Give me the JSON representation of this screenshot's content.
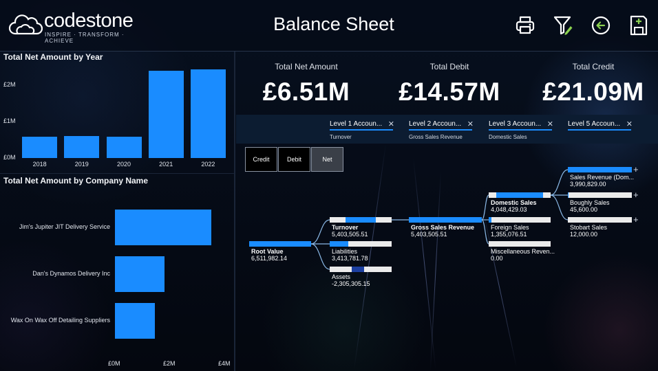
{
  "header": {
    "logo_name": "codestone",
    "logo_tagline": "INSPIRE · TRANSFORM · ACHIEVE",
    "title": "Balance Sheet",
    "icons": [
      "printer-icon",
      "filter-edit-icon",
      "back-arrow-icon",
      "save-add-icon"
    ]
  },
  "year_chart": {
    "title": "Total Net Amount by Year",
    "chart_data": {
      "type": "bar",
      "title": "Total Net Amount by Year",
      "categories": [
        "2018",
        "2019",
        "2020",
        "2021",
        "2022"
      ],
      "values": [
        0.58,
        0.6,
        0.58,
        2.4,
        2.45
      ],
      "y_ticks": [
        "£0M",
        "£1M",
        "£2M"
      ],
      "ylim": [
        0,
        2.5
      ],
      "color": "#1a8cff"
    }
  },
  "company_chart": {
    "title": "Total Net Amount by Company Name",
    "chart_data": {
      "type": "bar",
      "orientation": "horizontal",
      "title": "Total Net Amount by Company Name",
      "categories": [
        "Jim's Jupiter JIT Delivery Service",
        "Dan's Dynamos Delivery Inc",
        "Wax On Wax Off Detailing Suppliers"
      ],
      "values": [
        3.5,
        1.8,
        1.45
      ],
      "x_ticks": [
        "£0M",
        "£2M",
        "£4M"
      ],
      "xlim": [
        0,
        4
      ],
      "color": "#1a8cff"
    }
  },
  "kpis": [
    {
      "label": "Total Net Amount",
      "value": "£6.51M"
    },
    {
      "label": "Total Debit",
      "value": "£14.57M"
    },
    {
      "label": "Total Credit",
      "value": "£21.09M"
    }
  ],
  "filters": [
    {
      "label": "Level 1 Accoun...",
      "value": "Turnover"
    },
    {
      "label": "Level 2 Accoun...",
      "value": "Gross Sales Revenue"
    },
    {
      "label": "Level 3 Accoun...",
      "value": "Domestic Sales"
    },
    {
      "label": "Level 5 Accoun...",
      "value": ""
    }
  ],
  "toggles": [
    {
      "label": "Credit",
      "active": false
    },
    {
      "label": "Debit",
      "active": false
    },
    {
      "label": "Net",
      "active": true
    }
  ],
  "tree": {
    "root": {
      "label": "Root Value",
      "value": "6,511,982.14",
      "fill": 1.0
    },
    "level1": [
      {
        "label": "Turnover",
        "value": "5,403,505.51",
        "fill": 0.48,
        "selected": true
      },
      {
        "label": "Liabilities",
        "value": "3,413,781.78",
        "fill": 0.3
      },
      {
        "label": "Assets",
        "value": "-2,305,305.15",
        "fill": 0.2,
        "negative": true
      }
    ],
    "level2": [
      {
        "label": "Gross Sales Revenue",
        "value": "5,403,505.51",
        "fill": 1.0,
        "selected": true
      }
    ],
    "level3": [
      {
        "label": "Domestic Sales",
        "value": "4,048,429.03",
        "fill": 0.75,
        "selected": true
      },
      {
        "label": "Foreign Sales",
        "value": "1,355,076.51",
        "fill": 0.04
      },
      {
        "label": "Miscellaneous Reven...",
        "value": "0.00",
        "fill": 0.0
      }
    ],
    "level4": [
      {
        "label": "Sales Revenue (Dom...",
        "value": "3,990,829.00",
        "fill": 1.0
      },
      {
        "label": "Boughly Sales",
        "value": "45,600.00",
        "fill": 0.01
      },
      {
        "label": "Stobart Sales",
        "value": "12,000.00",
        "fill": 0.0
      }
    ]
  }
}
